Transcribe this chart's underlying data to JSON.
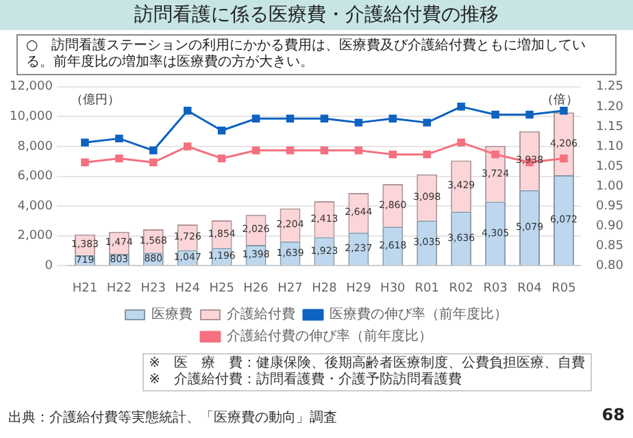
{
  "chart_data": {
    "type": "bar",
    "title": "訪問看護に係る医療費・介護給付費の推移",
    "subtitle": "○　訪問看護ステーションの利用にかかる費用は、医療費及び介護給付費ともに増加している。前年度比の増加率は医療費の方が大きい。",
    "ylabel": "（億円）",
    "y2label": "（倍）",
    "categories": [
      "H21",
      "H22",
      "H23",
      "H24",
      "H25",
      "H26",
      "H27",
      "H28",
      "H29",
      "H30",
      "R01",
      "R02",
      "R03",
      "R04",
      "R05"
    ],
    "stacked": true,
    "grid": "y",
    "legend": "bottom",
    "marker": "square",
    "ylim": [
      0,
      12000
    ],
    "yticks": [
      0,
      {
        "value": 2000,
        "label": "2,000"
      },
      {
        "value": 4000,
        "label": "4,000"
      },
      {
        "value": 6000,
        "label": "6,000"
      },
      {
        "value": 8000,
        "label": "8,000"
      },
      {
        "value": 10000,
        "label": "10,000"
      },
      {
        "value": 12000,
        "label": "12,000"
      }
    ],
    "y2lim": [
      0.8,
      1.25
    ],
    "y2ticks": [
      {
        "value": 0.8,
        "label": "0.80"
      },
      {
        "value": 0.85,
        "label": "0.85"
      },
      {
        "value": 0.9,
        "label": "0.90"
      },
      {
        "value": 0.95,
        "label": "0.95"
      },
      {
        "value": 1.0,
        "label": "1.00"
      },
      {
        "value": 1.05,
        "label": "1.05"
      },
      {
        "value": 1.1,
        "label": "1.10"
      },
      {
        "value": 1.15,
        "label": "1.15"
      },
      {
        "value": 1.2,
        "label": "1.20"
      },
      {
        "value": 1.25,
        "label": "1.25"
      }
    ],
    "series": [
      {
        "name": "医療費",
        "color": "#bdd7ee",
        "values": [
          719,
          803,
          880,
          1047,
          1196,
          1398,
          1639,
          1923,
          2237,
          2618,
          3035,
          3636,
          4305,
          5079,
          6072
        ],
        "value_labels": [
          "719",
          "803",
          "880",
          "1,047",
          "1,196",
          "1,398",
          "1,639",
          "1,923",
          "2,237",
          "2,618",
          "3,035",
          "3,636",
          "4,305",
          "5,079",
          "6,072"
        ]
      },
      {
        "name": "介護給付費",
        "color": "#fcd5d8",
        "values": [
          1383,
          1474,
          1568,
          1726,
          1854,
          2026,
          2204,
          2413,
          2644,
          2860,
          3098,
          3429,
          3724,
          3938,
          4206
        ],
        "value_labels": [
          "1,383",
          "1,474",
          "1,568",
          "1,726",
          "1,854",
          "2,026",
          "2,204",
          "2,413",
          "2,644",
          "2,860",
          "3,098",
          "3,429",
          "3,724",
          "3,938",
          "4,206"
        ]
      },
      {
        "name": "医療費の伸び率（前年度比）",
        "type": "line",
        "axis": "y2",
        "color": "#0e62c0",
        "values": [
          1.11,
          1.12,
          1.09,
          1.19,
          1.14,
          1.17,
          1.17,
          1.17,
          1.16,
          1.17,
          1.16,
          1.2,
          1.18,
          1.18,
          1.19
        ]
      },
      {
        "name": "介護給付費の伸び率（前年度比）",
        "type": "line",
        "axis": "y2",
        "color": "#f4707f",
        "values": [
          1.06,
          1.07,
          1.06,
          1.1,
          1.07,
          1.09,
          1.09,
          1.09,
          1.09,
          1.08,
          1.08,
          1.11,
          1.08,
          1.06,
          1.07
        ]
      }
    ],
    "annotations": [
      "出典：介護給付費等実態統計、「医療費の動向」調査",
      "※　医　療　費：健康保険、後期高齢者医療制度、公費負担医療、自費",
      "※　介護給付費：訪問看護費・介護予防訪問看護費",
      "68"
    ]
  }
}
